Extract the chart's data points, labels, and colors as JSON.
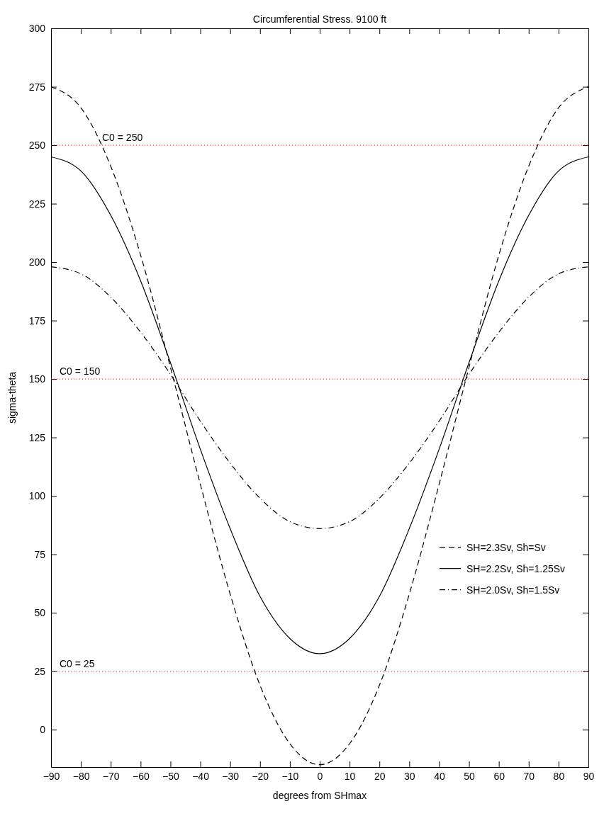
{
  "chart_data": {
    "type": "line",
    "title": "Circumferential Stress. 9100 ft",
    "xlabel": "degrees from SHmax",
    "ylabel": "sigma-theta",
    "x": [
      -90,
      -80,
      -70,
      -60,
      -50,
      -40,
      -30,
      -20,
      -10,
      0,
      10,
      20,
      30,
      40,
      50,
      60,
      70,
      80,
      90
    ],
    "series": [
      {
        "name": "SH=2.3Sv, Sh=Sv",
        "color": "#000000",
        "line_style": "dashed",
        "values": [
          275,
          266,
          241,
          203,
          155,
          105,
          58,
          19,
          -6,
          -15,
          -6,
          19,
          58,
          105,
          155,
          203,
          241,
          266,
          275
        ]
      },
      {
        "name": "SH=2.2Sv, Sh=1.25Sv",
        "color": "#000000",
        "line_style": "solid",
        "values": [
          245,
          239,
          220,
          192,
          157,
          120,
          86,
          57,
          39,
          32.5,
          39,
          57,
          86,
          120,
          157,
          192,
          220,
          239,
          245
        ]
      },
      {
        "name": "SH=2.0Sv, Sh=1.5Sv",
        "color": "#000000",
        "line_style": "dashdot",
        "values": [
          198,
          195,
          185,
          170,
          152,
          132,
          114,
          99,
          89,
          86,
          89,
          99,
          114,
          132,
          152,
          170,
          185,
          195,
          198
        ]
      }
    ],
    "xlim": [
      -90,
      90
    ],
    "xticks": [
      -90,
      -80,
      -70,
      -60,
      -50,
      -40,
      -30,
      -20,
      -10,
      0,
      10,
      20,
      30,
      40,
      50,
      60,
      70,
      80,
      90
    ],
    "ylim": [
      -16,
      300
    ],
    "yticks": [
      0,
      25,
      50,
      75,
      100,
      125,
      150,
      175,
      200,
      225,
      250,
      275,
      300
    ],
    "ref_lines": [
      {
        "axis": "y",
        "value": 250,
        "color": "#ff0000",
        "line_style": "dotted",
        "label": "C0 = 250"
      },
      {
        "axis": "y",
        "value": 150,
        "color": "#ff0000",
        "line_style": "dotted",
        "label": "C0 = 150"
      },
      {
        "axis": "y",
        "value": 25,
        "color": "#ff0000",
        "line_style": "dotted",
        "label": "C0 = 25"
      }
    ],
    "legend": "right",
    "grid": false,
    "marker": "none"
  }
}
